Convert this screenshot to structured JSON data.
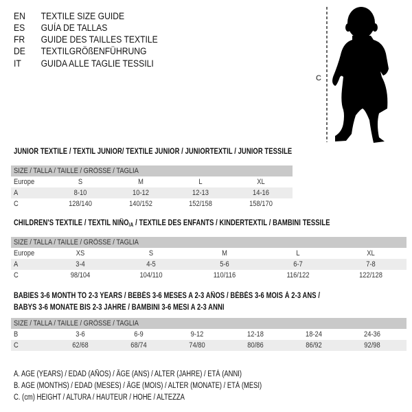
{
  "languages": [
    {
      "code": "EN",
      "title": "TEXTILE SIZE GUIDE"
    },
    {
      "code": "ES",
      "title": "GUÍA DE TALLAS"
    },
    {
      "code": "FR",
      "title": "GUIDE DES TAILLES TEXTILE"
    },
    {
      "code": "DE",
      "title": "TEXTILGRÖßENFÜHRUNG"
    },
    {
      "code": "IT",
      "title": "GUIDA ALLE TAGLIE TESSILI"
    }
  ],
  "figure": {
    "measure_label": "C",
    "silhouette": "baby-silhouette"
  },
  "size_header": "SIZE / TALLA / TAILLE / GRÖSSE / TAGLIA",
  "junior": {
    "title": "JUNIOR TEXTILE / TEXTIL JUNIOR/ TEXTILE JUNIOR / JUNIORTEXTIL / JUNIOR TESSILE",
    "rows": [
      {
        "label": "Europe",
        "values": [
          "S",
          "M",
          "L",
          "XL"
        ]
      },
      {
        "label": "A",
        "values": [
          "8-10",
          "10-12",
          "12-13",
          "14-16"
        ]
      },
      {
        "label": "C",
        "values": [
          "128/140",
          "140/152",
          "152/158",
          "158/170"
        ]
      }
    ]
  },
  "children": {
    "title_pre": "CHILDREN'S TEXTILE / TEXTIL NIÑO",
    "title_sub": "/A",
    "title_post": " / TEXTILE DES ENFANTS / KINDERTEXTIL / BAMBINI TESSILE",
    "rows": [
      {
        "label": "Europe",
        "values": [
          "XS",
          "S",
          "M",
          "L",
          "XL"
        ]
      },
      {
        "label": "A",
        "values": [
          "3-4",
          "4-5",
          "5-6",
          "6-7",
          "7-8"
        ]
      },
      {
        "label": "C",
        "values": [
          "98/104",
          "104/110",
          "110/116",
          "116/122",
          "122/128"
        ]
      }
    ]
  },
  "babies": {
    "title_line1": "BABIES 3-6 MONTH TO 2-3 YEARS / BEBÉS 3-6 MESES A 2-3 AÑOS / BÉBÉS 3-6 MOIS À 2-3 ANS /",
    "title_line2": "BABYS 3-6 MONATE BIS 2-3 JAHRE / BAMBINI 3-6 MESI A 2-3 ANNI",
    "rows": [
      {
        "label": "B",
        "values": [
          "3-6",
          "6-9",
          "9-12",
          "12-18",
          "18-24",
          "24-36"
        ]
      },
      {
        "label": "C",
        "values": [
          "62/68",
          "68/74",
          "74/80",
          "80/86",
          "86/92",
          "92/98"
        ]
      }
    ]
  },
  "legend": [
    "A. AGE (YEARS) / EDAD (AÑOS) / ÂGE (ANS) / ALTER (JAHRE) / ETÀ (ANNI)",
    "B. AGE (MONTHS) / EDAD (MESES) / ÂGE (MOIS) / ALTER (MONATE) / ETÀ (MESI)",
    "C. (cm) HEIGHT / ALTURA / HAUTEUR / HÖHE / ALTEZZA"
  ]
}
